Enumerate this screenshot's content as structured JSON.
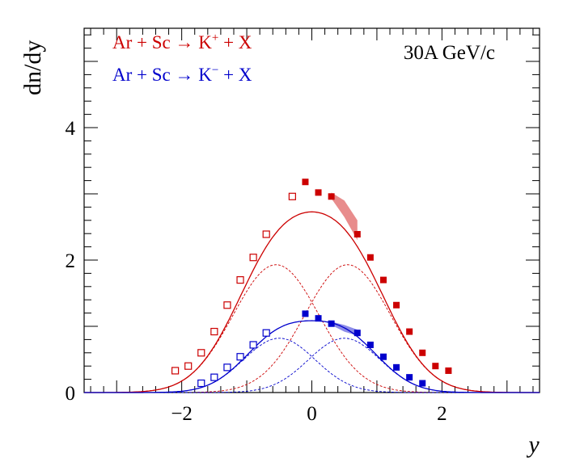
{
  "chart_data": {
    "type": "scatter",
    "xlabel": "y",
    "ylabel": "dn/dy",
    "xlim": [
      -3.5,
      3.5
    ],
    "ylim": [
      0,
      5.5
    ],
    "x_ticks": [
      -2,
      0,
      2
    ],
    "y_ticks": [
      0,
      2,
      4
    ],
    "annotation": "30A GeV/c",
    "colors": {
      "kplus": "#cc0000",
      "kminus": "#0000cc"
    },
    "series": [
      {
        "name": "Ar + Sc → K⁺ + X",
        "legend_prefix": "Ar + Sc → K",
        "legend_sup": "+",
        "legend_suffix": " + X",
        "color": "#cc0000",
        "fit": {
          "A": 1.93,
          "y0": 0.55,
          "sigma": 0.66
        },
        "measured": [
          {
            "x": -0.1,
            "y": 3.18
          },
          {
            "x": 0.1,
            "y": 3.02
          },
          {
            "x": 0.3,
            "y": 2.96
          },
          {
            "x": 0.7,
            "y": 2.39
          },
          {
            "x": 0.9,
            "y": 2.04
          },
          {
            "x": 1.1,
            "y": 1.7
          },
          {
            "x": 1.3,
            "y": 1.32
          },
          {
            "x": 1.5,
            "y": 0.92
          },
          {
            "x": 1.7,
            "y": 0.6
          },
          {
            "x": 1.9,
            "y": 0.4
          },
          {
            "x": 2.1,
            "y": 0.33
          }
        ],
        "reflected": [
          {
            "x": -2.1,
            "y": 0.33
          },
          {
            "x": -1.9,
            "y": 0.4
          },
          {
            "x": -1.7,
            "y": 0.6
          },
          {
            "x": -1.5,
            "y": 0.92
          },
          {
            "x": -1.3,
            "y": 1.32
          },
          {
            "x": -1.1,
            "y": 1.7
          },
          {
            "x": -0.9,
            "y": 2.04
          },
          {
            "x": -0.7,
            "y": 2.39
          },
          {
            "x": -0.3,
            "y": 2.96
          }
        ],
        "syst_band": [
          {
            "x": 0.3,
            "lo": 2.93,
            "hi": 3.02
          },
          {
            "x": 0.5,
            "lo": 2.65,
            "hi": 2.9
          },
          {
            "x": 0.7,
            "lo": 2.3,
            "hi": 2.6
          }
        ]
      },
      {
        "name": "Ar + Sc → K⁻ + X",
        "legend_prefix": "Ar + Sc → K",
        "legend_sup": "−",
        "legend_suffix": " + X",
        "color": "#0000cc",
        "fit": {
          "A": 0.82,
          "y0": 0.5,
          "sigma": 0.55
        },
        "measured": [
          {
            "x": -0.1,
            "y": 1.19
          },
          {
            "x": 0.1,
            "y": 1.12
          },
          {
            "x": 0.3,
            "y": 1.04
          },
          {
            "x": 0.7,
            "y": 0.9
          },
          {
            "x": 0.9,
            "y": 0.72
          },
          {
            "x": 1.1,
            "y": 0.54
          },
          {
            "x": 1.3,
            "y": 0.38
          },
          {
            "x": 1.5,
            "y": 0.23
          },
          {
            "x": 1.7,
            "y": 0.14
          }
        ],
        "reflected": [
          {
            "x": -1.7,
            "y": 0.14
          },
          {
            "x": -1.5,
            "y": 0.23
          },
          {
            "x": -1.3,
            "y": 0.38
          },
          {
            "x": -1.1,
            "y": 0.54
          },
          {
            "x": -0.9,
            "y": 0.72
          },
          {
            "x": -0.7,
            "y": 0.9
          }
        ],
        "syst_band": [
          {
            "x": 0.3,
            "lo": 1.02,
            "hi": 1.07
          },
          {
            "x": 0.5,
            "lo": 0.92,
            "hi": 1.02
          },
          {
            "x": 0.7,
            "lo": 0.86,
            "hi": 0.95
          }
        ]
      }
    ]
  }
}
